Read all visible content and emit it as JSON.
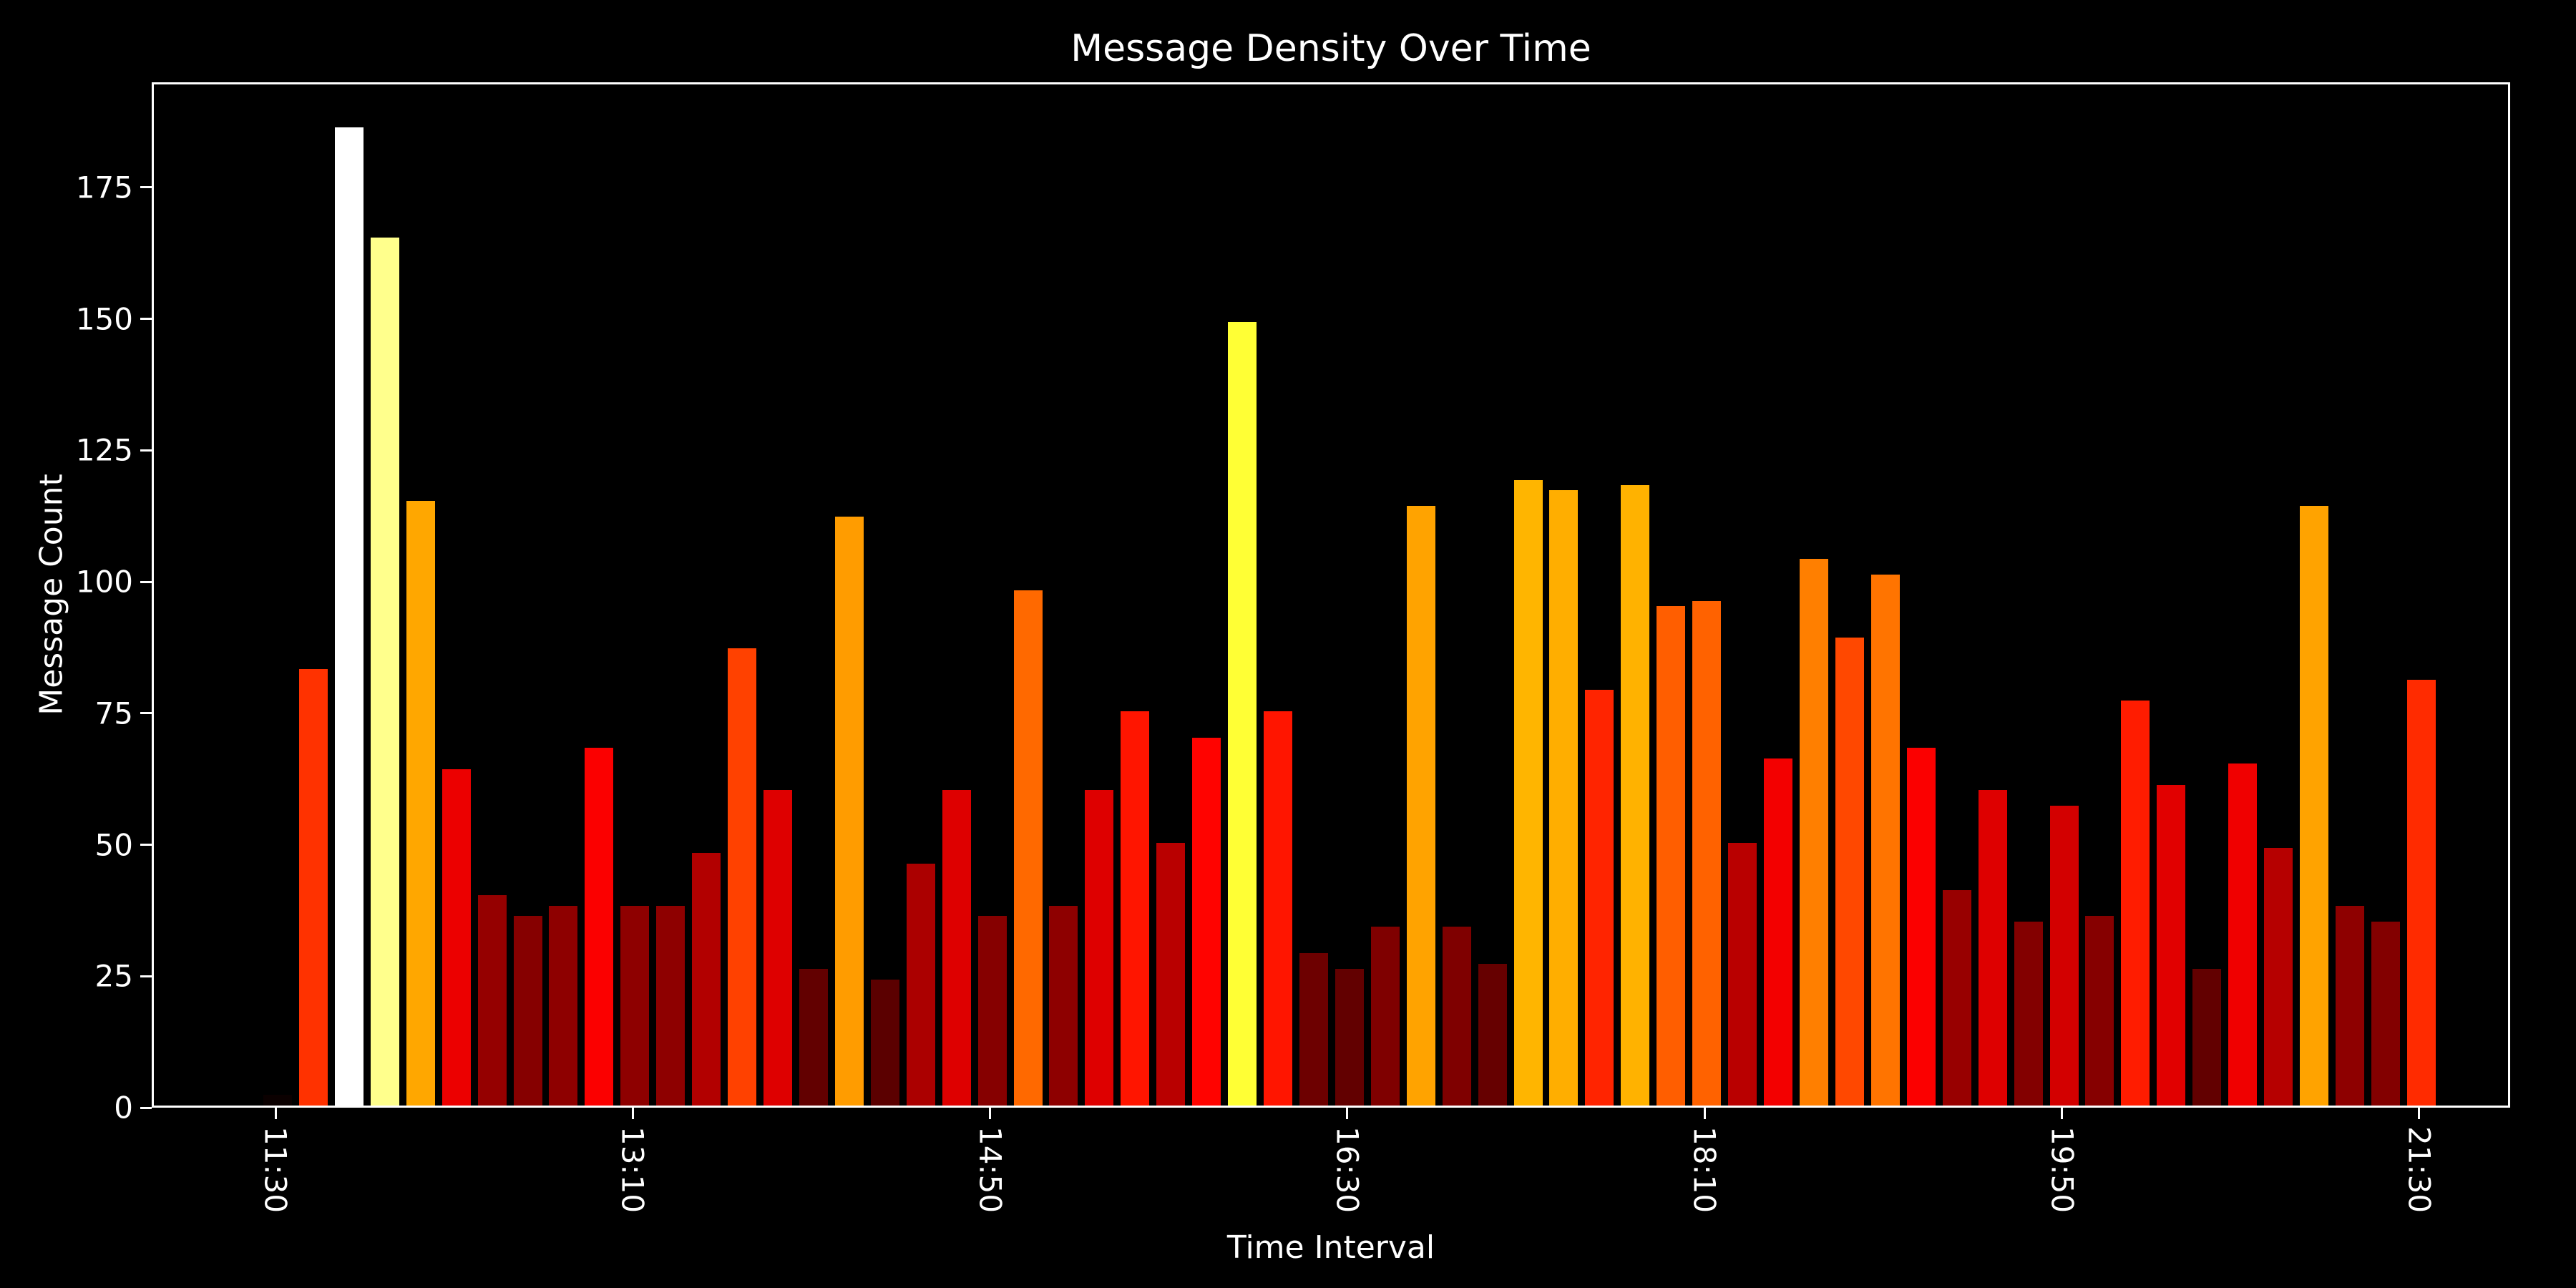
{
  "title": "Message Density Over Time",
  "colors": {
    "background": "#000000",
    "text": "#ffffff",
    "spine": "#ffffff"
  },
  "chart_data": {
    "type": "bar",
    "title": "Message Density Over Time",
    "xlabel": "Time Interval",
    "ylabel": "Message Count",
    "ylim": [
      0,
      195
    ],
    "yticks": [
      0,
      25,
      50,
      75,
      100,
      125,
      150,
      175
    ],
    "n_bars": 61,
    "x_tick_positions": [
      0,
      10,
      20,
      30,
      40,
      50,
      60
    ],
    "x_tick_labels": [
      "11:30",
      "13:10",
      "14:50",
      "16:30",
      "18:10",
      "19:50",
      "21:30"
    ],
    "values": [
      2,
      83,
      186,
      165,
      115,
      64,
      40,
      36,
      38,
      68,
      38,
      38,
      48,
      87,
      60,
      26,
      112,
      24,
      46,
      60,
      36,
      98,
      38,
      60,
      75,
      50,
      70,
      149,
      75,
      29,
      26,
      34,
      114,
      34,
      27,
      119,
      117,
      79,
      118,
      95,
      96,
      50,
      66,
      104,
      89,
      101,
      68,
      41,
      60,
      35,
      57,
      36,
      77,
      61,
      26,
      65,
      49,
      114,
      38,
      35,
      81
    ],
    "colormap": "hot",
    "grid": false,
    "legend_position": "none",
    "background": "#000000",
    "text_color": "#ffffff"
  }
}
